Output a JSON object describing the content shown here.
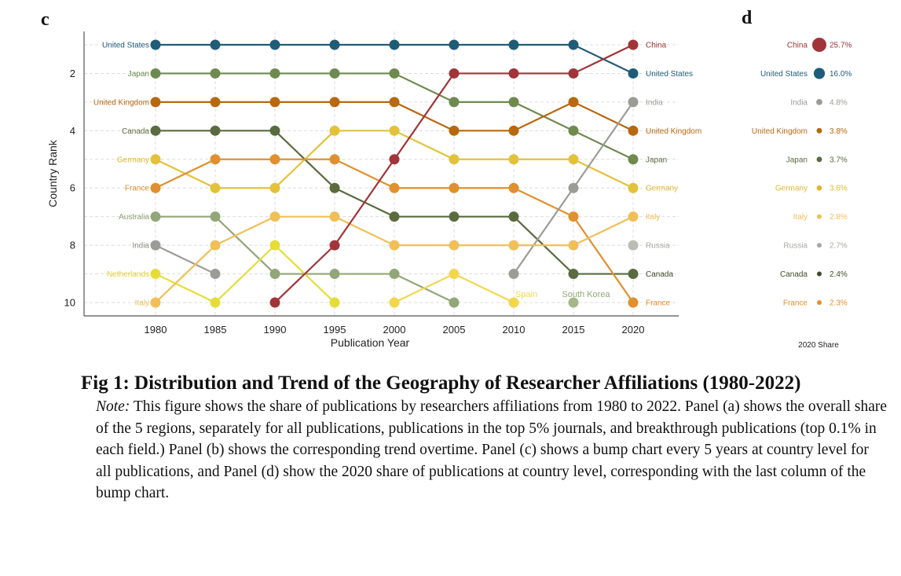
{
  "panels": {
    "c_label": "c",
    "d_label": "d"
  },
  "chart_data": [
    {
      "type": "bump",
      "panel": "c",
      "xlabel": "Publication Year",
      "ylabel": "Country Rank",
      "x": [
        1980,
        1985,
        1990,
        1995,
        2000,
        2005,
        2010,
        2015,
        2020
      ],
      "xticks": [
        "1980",
        "1985",
        "1990",
        "1995",
        "2000",
        "2005",
        "2010",
        "2015",
        "2020"
      ],
      "yticks": [
        "2",
        "4",
        "6",
        "8",
        "10"
      ],
      "ytick_values": [
        2,
        4,
        6,
        8,
        10
      ],
      "ylim": [
        0.55,
        10.45
      ],
      "y_inverted": true,
      "grid": true,
      "series": [
        {
          "name": "United States",
          "color": "#1f5c78",
          "ranks": [
            1,
            1,
            1,
            1,
            1,
            1,
            1,
            1,
            2
          ]
        },
        {
          "name": "Japan",
          "color": "#6f8a4e",
          "ranks": [
            2,
            2,
            2,
            2,
            2,
            3,
            3,
            4,
            5
          ]
        },
        {
          "name": "United Kingdom",
          "color": "#b8680f",
          "ranks": [
            3,
            3,
            3,
            3,
            3,
            4,
            4,
            3,
            4
          ]
        },
        {
          "name": "Canada",
          "color": "#5a6b3f",
          "ranks": [
            4,
            4,
            4,
            6,
            7,
            7,
            7,
            9,
            9
          ]
        },
        {
          "name": "Germany",
          "color": "#e3c23a",
          "ranks": [
            5,
            6,
            6,
            4,
            4,
            5,
            5,
            5,
            6
          ]
        },
        {
          "name": "France",
          "color": "#e0902e",
          "ranks": [
            6,
            5,
            5,
            5,
            6,
            6,
            6,
            7,
            10
          ]
        },
        {
          "name": "Australia",
          "color": "#93a678",
          "ranks": [
            7,
            7,
            9,
            9,
            9,
            10,
            null,
            null,
            null
          ]
        },
        {
          "name": "India",
          "color": "#9c9c96",
          "ranks": [
            8,
            9,
            null,
            null,
            null,
            null,
            9,
            6,
            3
          ]
        },
        {
          "name": "Netherlands",
          "color": "#e6dc38",
          "ranks": [
            9,
            10,
            8,
            10,
            null,
            null,
            null,
            null,
            null
          ]
        },
        {
          "name": "Italy",
          "color": "#f0bf58",
          "ranks": [
            10,
            8,
            7,
            7,
            8,
            8,
            8,
            8,
            7
          ]
        },
        {
          "name": "China",
          "color": "#a13438",
          "ranks": [
            null,
            null,
            10,
            8,
            5,
            2,
            2,
            2,
            1
          ]
        },
        {
          "name": "Spain",
          "color": "#f2d74d",
          "ranks": [
            null,
            null,
            null,
            null,
            10,
            9,
            10,
            null,
            null
          ]
        },
        {
          "name": "South Korea",
          "color": "#a4b887",
          "ranks": [
            null,
            null,
            null,
            null,
            null,
            null,
            null,
            10,
            null
          ]
        },
        {
          "name": "Russia",
          "color": "#bcbcb6",
          "ranks": [
            null,
            null,
            null,
            null,
            null,
            null,
            null,
            null,
            8
          ]
        }
      ],
      "left_labels": [
        {
          "rank": 1,
          "text": "United States",
          "color": "#1f5c78"
        },
        {
          "rank": 2,
          "text": "Japan",
          "color": "#6f8a4e"
        },
        {
          "rank": 3,
          "text": "United Kingdom",
          "color": "#b8680f"
        },
        {
          "rank": 4,
          "text": "Canada",
          "color": "#5a6b3f"
        },
        {
          "rank": 5,
          "text": "Germany",
          "color": "#e0b830"
        },
        {
          "rank": 6,
          "text": "France",
          "color": "#e0902e"
        },
        {
          "rank": 7,
          "text": "Australia",
          "color": "#8ea173"
        },
        {
          "rank": 8,
          "text": "India",
          "color": "#8c8c86"
        },
        {
          "rank": 9,
          "text": "Netherlands",
          "color": "#e0d12c"
        },
        {
          "rank": 10,
          "text": "Italy",
          "color": "#f0bf58"
        }
      ],
      "right_labels": [
        {
          "rank": 1,
          "text": "China",
          "color": "#a13438"
        },
        {
          "rank": 2,
          "text": "United States",
          "color": "#1f5c78"
        },
        {
          "rank": 3,
          "text": "India",
          "color": "#9c9c96"
        },
        {
          "rank": 4,
          "text": "United Kingdom",
          "color": "#b8680f"
        },
        {
          "rank": 5,
          "text": "Japan",
          "color": "#5a6b3f"
        },
        {
          "rank": 6,
          "text": "Germany",
          "color": "#e0b830"
        },
        {
          "rank": 7,
          "text": "Italy",
          "color": "#f0bf58"
        },
        {
          "rank": 8,
          "text": "Russia",
          "color": "#a8a8a2"
        },
        {
          "rank": 9,
          "text": "Canada",
          "color": "#3f4a2c"
        },
        {
          "rank": 10,
          "text": "France",
          "color": "#e0902e"
        }
      ],
      "annotations": [
        {
          "text": "Spain",
          "x": 2010,
          "rank": 10,
          "color": "#f2d74d"
        },
        {
          "text": "South Korea",
          "x": 2015,
          "rank": 10,
          "color": "#93a678"
        }
      ]
    },
    {
      "type": "bubble",
      "panel": "d",
      "xlabel": "2020 Share",
      "entries": [
        {
          "name": "China",
          "value": 25.7,
          "label": "25.7%",
          "color": "#a13438"
        },
        {
          "name": "United States",
          "value": 16.0,
          "label": "16.0%",
          "color": "#1f5c78"
        },
        {
          "name": "India",
          "value": 4.8,
          "label": "4.8%",
          "color": "#9c9c96"
        },
        {
          "name": "United Kingdom",
          "value": 3.8,
          "label": "3.8%",
          "color": "#b8680f"
        },
        {
          "name": "Japan",
          "value": 3.7,
          "label": "3.7%",
          "color": "#5a6b3f"
        },
        {
          "name": "Germany",
          "value": 3.6,
          "label": "3.6%",
          "color": "#e0b830"
        },
        {
          "name": "Italy",
          "value": 2.8,
          "label": "2.8%",
          "color": "#f0bf58"
        },
        {
          "name": "Russia",
          "value": 2.7,
          "label": "2.7%",
          "color": "#a8a8a2"
        },
        {
          "name": "Canada",
          "value": 2.4,
          "label": "2.4%",
          "color": "#3f4a2c"
        },
        {
          "name": "France",
          "value": 2.3,
          "label": "2.3%",
          "color": "#e0902e"
        }
      ]
    }
  ],
  "caption": {
    "title": "Fig 1: Distribution and Trend of the Geography of Researcher Affiliations (1980-2022)",
    "note_label": "Note:",
    "note_text": " This figure shows the share of publications by researchers affiliations from 1980 to 2022. Panel (a) shows the overall share of the 5 regions, separately for all publications, publications in the top 5% journals, and breakthrough publications (top 0.1% in each field.) Panel (b) shows the corresponding trend overtime. Panel (c) shows a bump chart every 5 years at country level for all publications, and Panel (d) show the 2020 share of publications at country level, corresponding with the last column of the bump chart."
  }
}
